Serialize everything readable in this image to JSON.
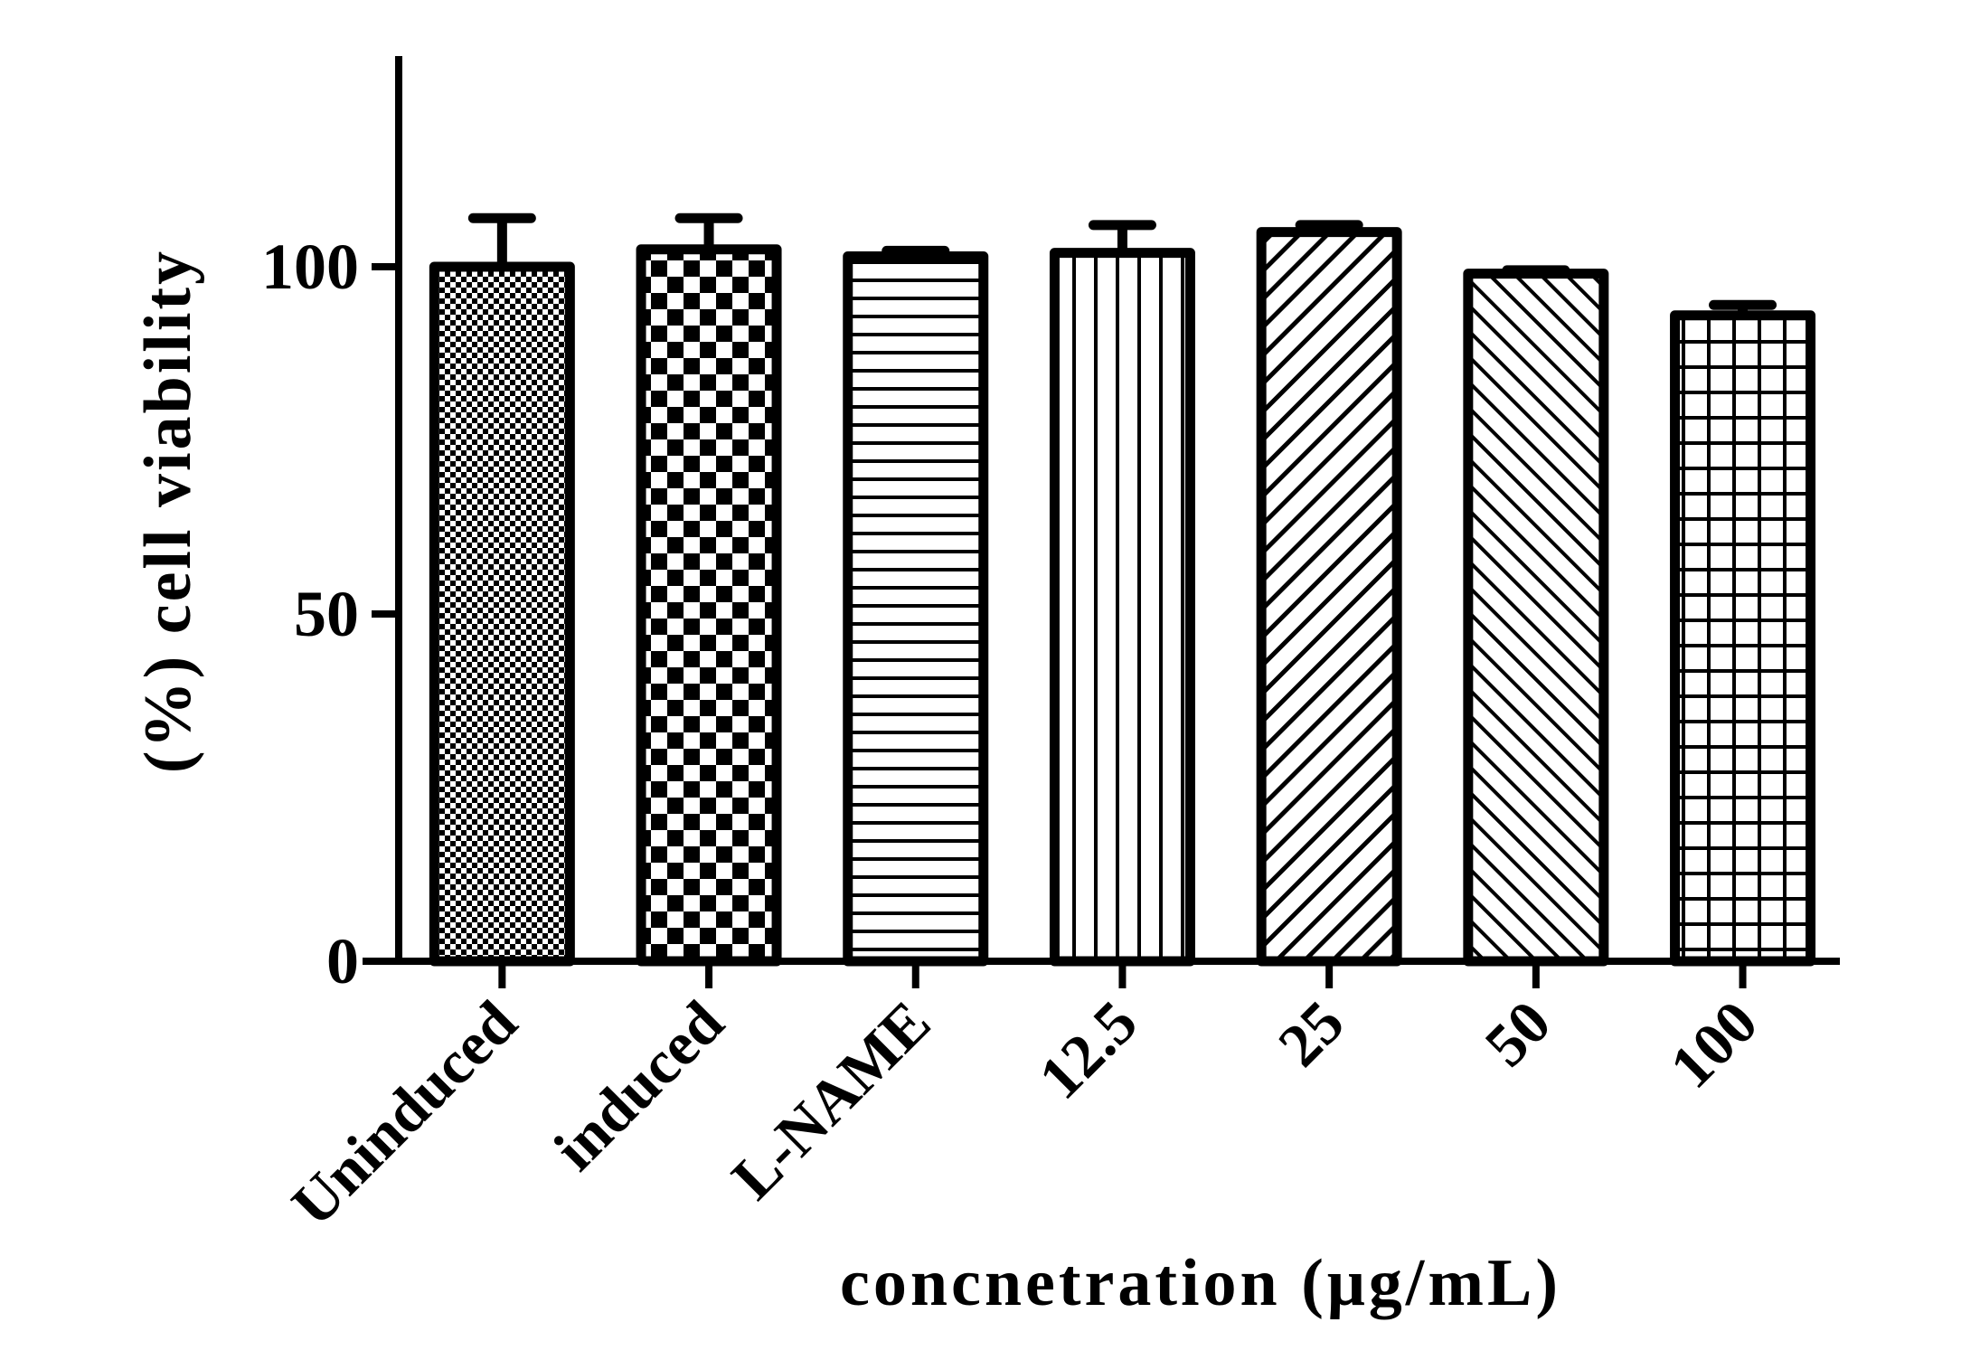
{
  "chart_data": {
    "type": "bar",
    "title": "",
    "xlabel": "concnetration (μg/mL)",
    "ylabel": "(%) cell viability",
    "ylim": [
      0,
      130
    ],
    "yticks": [
      0,
      50,
      100
    ],
    "ytick_labels": [
      "0",
      "50",
      "100"
    ],
    "categories": [
      "Uninduced",
      "induced",
      "L-NAME",
      "12.5",
      "25",
      "50",
      "100"
    ],
    "values": [
      100,
      102.5,
      101.5,
      102,
      105,
      99,
      93
    ],
    "errors": [
      7,
      4.5,
      0.8,
      4,
      1,
      0.5,
      1.5
    ],
    "patterns": [
      "checker-fine",
      "checker-large",
      "horizontal-lines",
      "vertical-lines",
      "diagonal-up",
      "diagonal-down",
      "grid"
    ],
    "grid": false,
    "legend": "none",
    "colors": {
      "ink": "#000000",
      "fill": "#ffffff"
    }
  }
}
